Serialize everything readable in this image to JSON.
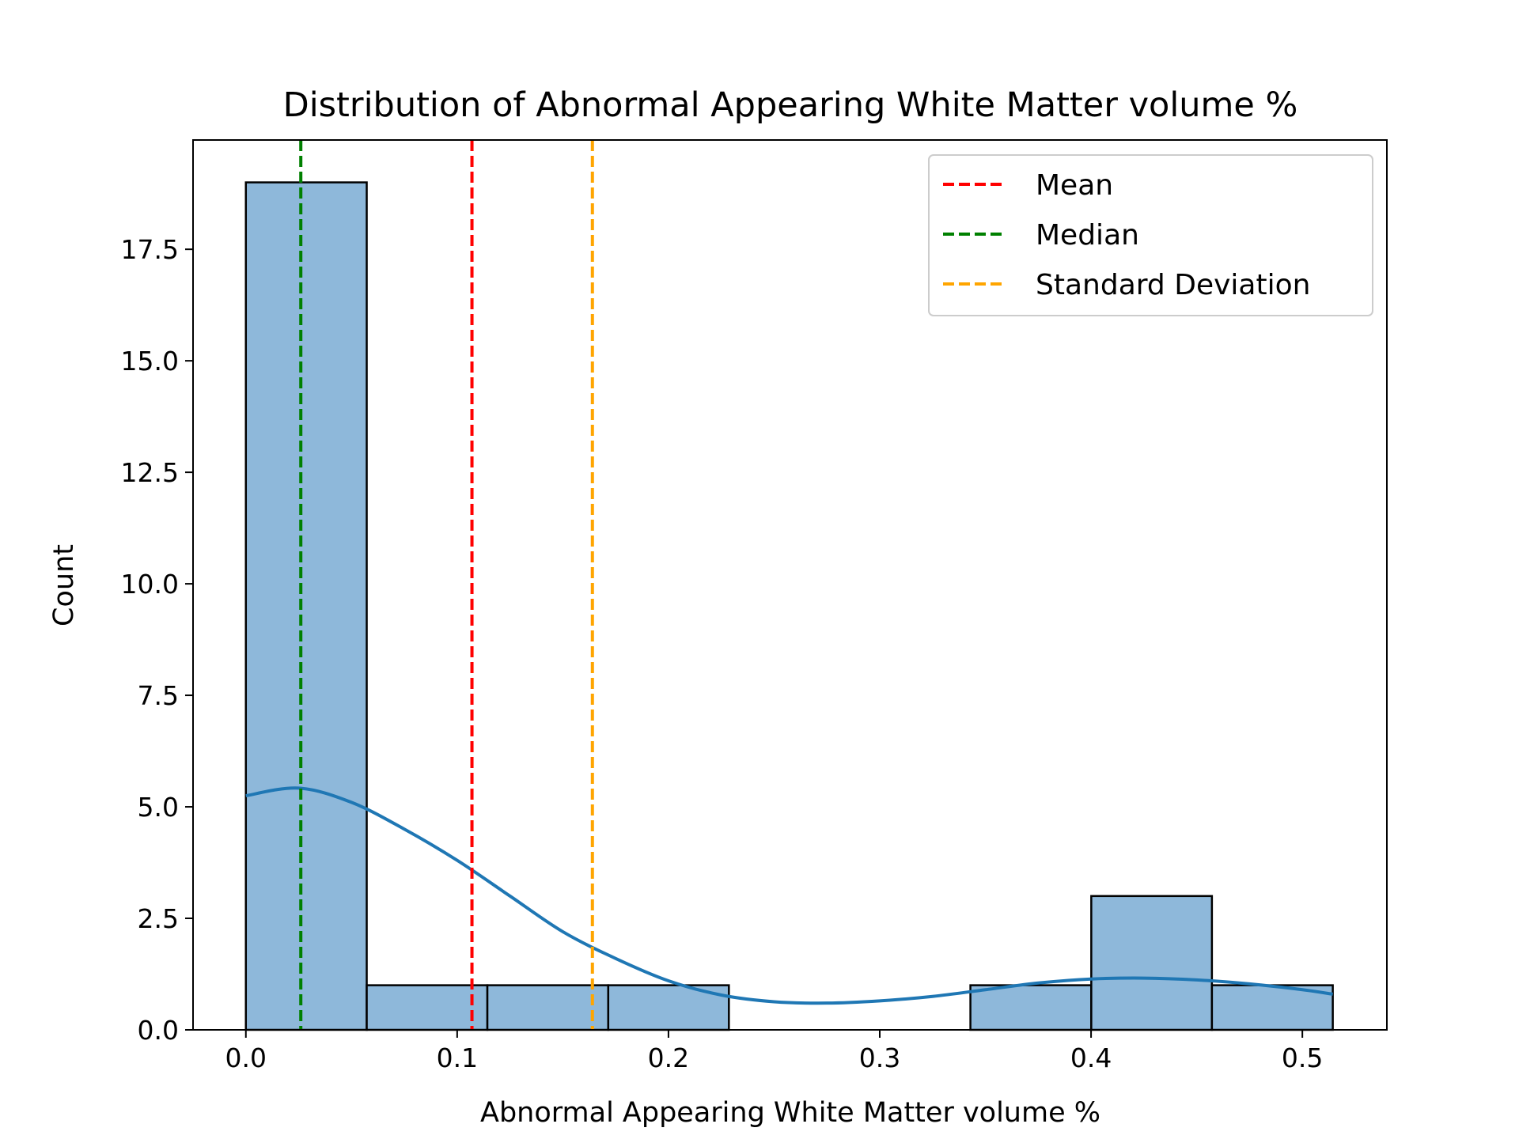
{
  "chart_data": {
    "type": "bar",
    "title": "Distribution of Abnormal Appearing White Matter volume %",
    "xlabel": "Abnormal Appearing White Matter volume %",
    "ylabel": "Count",
    "xlim": [
      -0.025,
      0.54
    ],
    "ylim": [
      0,
      19.95
    ],
    "x_ticks": [
      0.0,
      0.1,
      0.2,
      0.3,
      0.4,
      0.5
    ],
    "x_tick_labels": [
      "0.0",
      "0.1",
      "0.2",
      "0.3",
      "0.4",
      "0.5"
    ],
    "y_ticks": [
      0,
      2.5,
      5,
      7.5,
      10,
      12.5,
      15,
      17.5
    ],
    "y_tick_labels": [
      "0.0",
      "2.5",
      "5.0",
      "7.5",
      "10.0",
      "12.5",
      "15.0",
      "17.5"
    ],
    "bins": [
      {
        "start": 0.0,
        "end": 0.0572,
        "count": 19
      },
      {
        "start": 0.0572,
        "end": 0.1143,
        "count": 1
      },
      {
        "start": 0.1143,
        "end": 0.1715,
        "count": 1
      },
      {
        "start": 0.1715,
        "end": 0.2286,
        "count": 1
      },
      {
        "start": 0.2286,
        "end": 0.2858,
        "count": 0
      },
      {
        "start": 0.2858,
        "end": 0.3429,
        "count": 0
      },
      {
        "start": 0.3429,
        "end": 0.4001,
        "count": 1
      },
      {
        "start": 0.4001,
        "end": 0.4572,
        "count": 3
      },
      {
        "start": 0.4572,
        "end": 0.5144,
        "count": 1
      }
    ],
    "kde": {
      "x": [
        0.0,
        0.025,
        0.05,
        0.075,
        0.1,
        0.125,
        0.15,
        0.175,
        0.2,
        0.225,
        0.25,
        0.275,
        0.3,
        0.325,
        0.35,
        0.375,
        0.4,
        0.425,
        0.45,
        0.475,
        0.5,
        0.5144
      ],
      "y": [
        5.25,
        5.42,
        5.1,
        4.5,
        3.8,
        3.0,
        2.2,
        1.6,
        1.1,
        0.78,
        0.63,
        0.6,
        0.65,
        0.75,
        0.9,
        1.05,
        1.14,
        1.16,
        1.12,
        1.03,
        0.9,
        0.8
      ]
    },
    "reference_lines": [
      {
        "name": "Mean",
        "x": 0.107,
        "color": "#ff0000"
      },
      {
        "name": "Median",
        "x": 0.026,
        "color": "#008000"
      },
      {
        "name": "Standard Deviation",
        "x": 0.164,
        "color": "#ffa500"
      }
    ],
    "legend": {
      "placement": "top-right",
      "entries": [
        "Mean",
        "Median",
        "Standard Deviation"
      ]
    },
    "bar_color": "#8eb8da",
    "kde_color": "#1f77b4",
    "grid": false
  }
}
